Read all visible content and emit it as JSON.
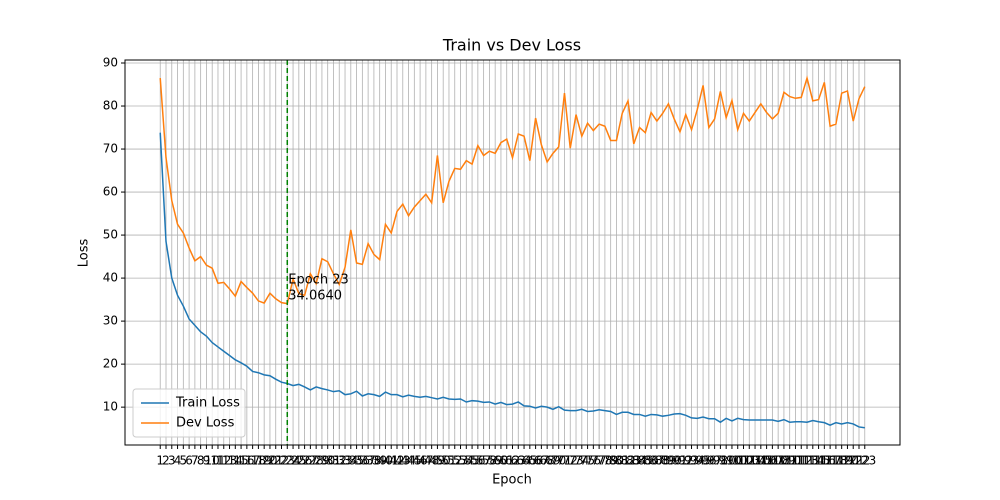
{
  "chart_data": {
    "type": "line",
    "title": "Train vs Dev Loss",
    "xlabel": "Epoch",
    "ylabel": "Loss",
    "x": [
      1,
      2,
      3,
      4,
      5,
      6,
      7,
      8,
      9,
      10,
      11,
      12,
      13,
      14,
      15,
      16,
      17,
      18,
      19,
      20,
      21,
      22,
      23,
      24,
      25,
      26,
      27,
      28,
      29,
      30,
      31,
      32,
      33,
      34,
      35,
      36,
      37,
      38,
      39,
      40,
      41,
      42,
      43,
      44,
      45,
      46,
      47,
      48,
      49,
      50,
      51,
      52,
      53,
      54,
      55,
      56,
      57,
      58,
      59,
      60,
      61,
      62,
      63,
      64,
      65,
      66,
      67,
      68,
      69,
      70,
      71,
      72,
      73,
      74,
      75,
      76,
      77,
      78,
      79,
      80,
      81,
      82,
      83,
      84,
      85,
      86,
      87,
      88,
      89,
      90,
      91,
      92,
      93,
      94,
      95,
      96,
      97,
      98,
      99,
      100,
      101,
      102,
      103,
      104,
      105,
      106,
      107,
      108,
      109,
      110,
      111,
      112,
      113,
      114,
      115,
      116,
      117,
      118,
      119,
      120,
      121,
      122,
      123
    ],
    "series": [
      {
        "name": "Train Loss",
        "color": "#1f77b4",
        "values": [
          73.8,
          48.5,
          40,
          36,
          33.5,
          30.5,
          29,
          27.5,
          26.5,
          25,
          24,
          23,
          22,
          21,
          20.3,
          19.5,
          18.3,
          18,
          17.5,
          17.3,
          16.5,
          15.8,
          15.5,
          15,
          15.3,
          14.7,
          14,
          14.7,
          14.3,
          14,
          13.6,
          13.8,
          12.9,
          13.1,
          13.7,
          12.6,
          13.1,
          12.9,
          12.5,
          13.5,
          12.9,
          12.9,
          12.4,
          12.8,
          12.5,
          12.3,
          12.5,
          12.2,
          11.9,
          12.3,
          11.9,
          11.8,
          11.9,
          11.2,
          11.5,
          11.4,
          11.1,
          11.2,
          10.7,
          11.1,
          10.6,
          10.7,
          11.2,
          10.3,
          10.2,
          9.8,
          10.2,
          10,
          9.5,
          10.1,
          9.3,
          9.2,
          9.2,
          9.5,
          9,
          9.1,
          9.4,
          9.2,
          9,
          8.3,
          8.8,
          8.8,
          8.3,
          8.3,
          7.9,
          8.3,
          8.2,
          7.9,
          8.1,
          8.4,
          8.5,
          8.1,
          7.5,
          7.4,
          7.7,
          7.3,
          7.3,
          6.5,
          7.4,
          6.8,
          7.4,
          7.1,
          7,
          7,
          7,
          7,
          7,
          6.7,
          7.1,
          6.5,
          6.6,
          6.6,
          6.5,
          6.9,
          6.6,
          6.4,
          5.8,
          6.4,
          6.1,
          6.4,
          6.1,
          5.4,
          5.2
        ]
      },
      {
        "name": "Dev Loss",
        "color": "#ff7f0e",
        "values": [
          86.5,
          68,
          58,
          52.5,
          50.5,
          47,
          44,
          45,
          43,
          42.3,
          38.8,
          39,
          37.5,
          35.8,
          39.2,
          37.8,
          36.5,
          34.7,
          34.2,
          36.5,
          35.2,
          34.3,
          34.064,
          39.8,
          36.4,
          36,
          41,
          38.7,
          44.5,
          43.8,
          41,
          38.5,
          42.5,
          51.2,
          43.5,
          43.2,
          48,
          45.5,
          44.3,
          52.5,
          50.5,
          55.5,
          57.2,
          54.5,
          56.5,
          58,
          59.5,
          57.5,
          68.5,
          57.5,
          62.5,
          65.5,
          65.3,
          67.3,
          66.5,
          70.8,
          68.5,
          69.5,
          69,
          71.5,
          72.3,
          68,
          73.5,
          73,
          67.3,
          77.2,
          71,
          67,
          69,
          70.5,
          83,
          70.2,
          78,
          73,
          76,
          74.3,
          75.8,
          75.3,
          72,
          72,
          78.3,
          81.2,
          71.2,
          75,
          73.8,
          78.5,
          76.5,
          78.3,
          80.5,
          77,
          74,
          78,
          74.5,
          79.2,
          84.8,
          75,
          77,
          83.4,
          77.3,
          81.3,
          74.5,
          78.3,
          76.5,
          78.5,
          80.5,
          78.5,
          77,
          78.3,
          83.2,
          82.2,
          81.8,
          82,
          86.5,
          81.2,
          81.5,
          85.5,
          75.3,
          75.8,
          83,
          83.5,
          76.5,
          81.7,
          84.5
        ]
      }
    ],
    "xlim": [
      -5.1,
      129.1
    ],
    "ylim": [
      1.2,
      90.7
    ],
    "yticks": [
      10,
      20,
      30,
      40,
      50,
      60,
      70,
      80,
      90
    ],
    "grid": true,
    "legend": "lower left",
    "vline": {
      "x": 23,
      "color": "green"
    },
    "annotation": {
      "x": 23,
      "lines": [
        "Epoch 23",
        "34.0640"
      ]
    }
  }
}
